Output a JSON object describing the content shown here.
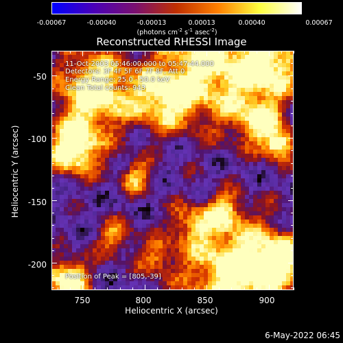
{
  "colorbar": {
    "tick_labels": [
      "-0.00067",
      "-0.00040",
      "-0.00013",
      "0.00013",
      "0.00040",
      "0.00067"
    ],
    "unit_prefix": "(photons cm",
    "unit_exp1": "-2",
    "unit_mid1": " s",
    "unit_exp2": "-1",
    "unit_mid2": " asec",
    "unit_exp3": "-2",
    "unit_suffix": ")",
    "colors": [
      "#0000ff",
      "#4a00b8",
      "#7a1070",
      "#c03000",
      "#ff8000",
      "#ffff40",
      "#ffffff"
    ]
  },
  "title": "Reconstructed RHESSI Image",
  "annotations": {
    "time_range": "11-Oct-2003 05:46:00.000 to 05:47:44.000",
    "detectors": "Detectors: 3F 4F 5F 6F 7F 8F, Att 0",
    "energy_range": "Energy Range: 25.0 - 50.0 keV",
    "clean_counts": "Clean     Total counts: 943",
    "peak_position": "Position of Peak = [805,-39]"
  },
  "axes": {
    "xlabel": "Heliocentric X (arcsec)",
    "ylabel": "Heliocentric Y (arcsec)",
    "x_ticks": [
      "750",
      "800",
      "850",
      "900"
    ],
    "y_ticks": [
      "-50",
      "-100",
      "-150",
      "-200"
    ],
    "x_range": [
      725,
      920
    ],
    "y_range": [
      -222,
      -30
    ]
  },
  "datestamp": "6-May-2022 06:45"
}
